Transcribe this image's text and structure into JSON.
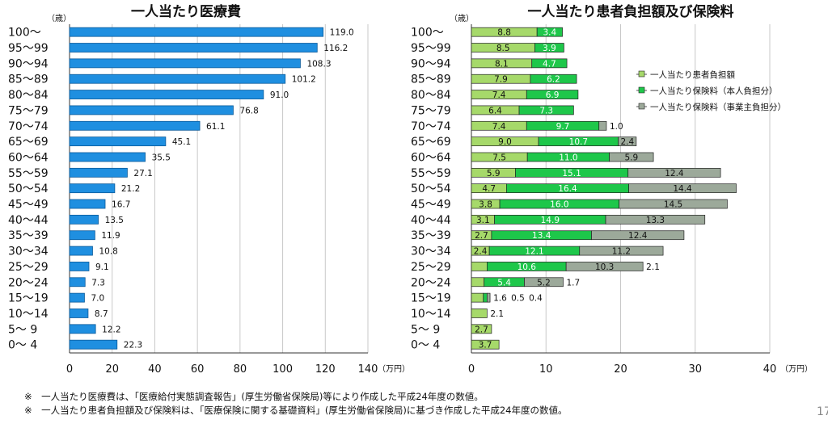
{
  "age_groups": [
    "100～",
    "95～99",
    "90～94",
    "85～89",
    "80～84",
    "75～79",
    "70～74",
    "65～69",
    "60～64",
    "55～59",
    "50～54",
    "45～49",
    "40～44",
    "35～39",
    "30～34",
    "25～29",
    "20～24",
    "15～19",
    "10～14",
    "5～ 9",
    "0～ 4"
  ],
  "footnotes": [
    "※　一人当たり医療費は、「医療給付実態調査報告」(厚生労働省保険局)等により作成した平成24年度の数値。",
    "※　一人当たり患者負担額及び保険料は、「医療保険に関する基礎資料」(厚生労働省保険局)に基づき作成した平成24年度の数値。"
  ],
  "page_number": "17",
  "colors": {
    "medical_bar": "#1f8fe0",
    "medical_bar_edge": "#0a5a9a",
    "patient_burden": "#a6d96a",
    "premium_self": "#1ec74a",
    "premium_employer": "#9ca99a",
    "bar_edge": "#222222",
    "grid": "#c8c8c8"
  },
  "chart_data": [
    {
      "type": "bar",
      "orientation": "horizontal",
      "title": "一人当たり医療費",
      "y_unit": "（歳）",
      "x_unit": "（万円）",
      "categories": [
        "100～",
        "95～99",
        "90～94",
        "85～89",
        "80～84",
        "75～79",
        "70～74",
        "65～69",
        "60～64",
        "55～59",
        "50～54",
        "45～49",
        "40～44",
        "35～39",
        "30～34",
        "25～29",
        "20～24",
        "15～19",
        "10～14",
        "5～ 9",
        "0～ 4"
      ],
      "values": [
        119.0,
        116.2,
        108.3,
        101.2,
        91.0,
        76.8,
        61.1,
        45.1,
        35.5,
        27.1,
        21.2,
        16.7,
        13.5,
        11.9,
        10.8,
        9.1,
        7.3,
        7.0,
        8.7,
        12.2,
        22.3
      ],
      "xlim": [
        0,
        140
      ],
      "xticks": [
        0,
        20,
        40,
        60,
        80,
        100,
        120,
        140
      ],
      "grid": "vertical"
    },
    {
      "type": "bar",
      "orientation": "horizontal",
      "stacked": true,
      "title": "一人当たり患者負担額及び保険料",
      "y_unit": "（歳）",
      "x_unit": "（万円）",
      "categories": [
        "100～",
        "95～99",
        "90～94",
        "85～89",
        "80～84",
        "75～79",
        "70～74",
        "65～69",
        "60～64",
        "55～59",
        "50～54",
        "45～49",
        "40～44",
        "35～39",
        "30～34",
        "25～29",
        "20～24",
        "15～19",
        "10～14",
        "5～ 9",
        "0～ 4"
      ],
      "series": [
        {
          "name": "一人当たり患者負担額",
          "values": [
            8.8,
            8.5,
            8.1,
            7.9,
            7.4,
            6.4,
            7.4,
            9.0,
            7.5,
            5.9,
            4.7,
            3.8,
            3.1,
            2.7,
            2.4,
            2.1,
            1.7,
            1.6,
            2.1,
            2.7,
            3.7
          ]
        },
        {
          "name": "一人当たり保険料（本人負担分）",
          "values": [
            3.4,
            3.9,
            4.7,
            6.2,
            6.9,
            7.3,
            9.7,
            10.7,
            11.0,
            15.1,
            16.4,
            16.0,
            14.9,
            13.4,
            12.1,
            10.6,
            5.4,
            0.5,
            null,
            null,
            null
          ]
        },
        {
          "name": "一人当たり保険料（事業主負担分）",
          "values": [
            null,
            null,
            null,
            null,
            null,
            null,
            1.0,
            2.4,
            5.9,
            12.4,
            14.4,
            14.5,
            13.3,
            12.4,
            11.2,
            10.3,
            5.2,
            0.4,
            null,
            null,
            null
          ]
        }
      ],
      "xlim": [
        0,
        40
      ],
      "xticks": [
        0,
        10,
        20,
        30,
        40
      ],
      "grid": "vertical",
      "legend_position": "right"
    }
  ]
}
